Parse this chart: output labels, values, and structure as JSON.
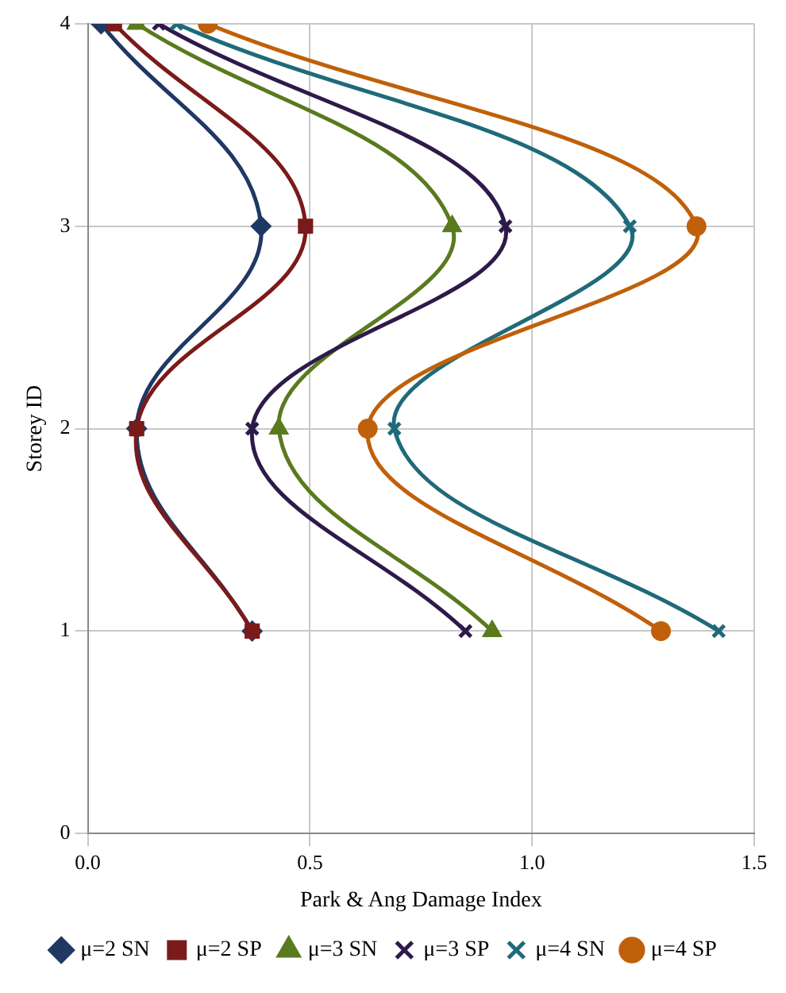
{
  "chart_data": {
    "type": "line",
    "xlabel": "Park & Ang Damage Index",
    "ylabel": "Storey ID",
    "xlim": [
      0,
      1.5
    ],
    "xticks": [
      {
        "value": 0,
        "label": "0.0"
      },
      {
        "value": 0.5,
        "label": "0.5"
      },
      {
        "value": 1,
        "label": "1.0"
      },
      {
        "value": 1.5,
        "label": "1.5"
      }
    ],
    "ylim": [
      0,
      4
    ],
    "yticks": [
      0,
      1,
      2,
      3,
      4
    ],
    "grid": true,
    "legend": "bottom",
    "line_style": "solid",
    "series": [
      {
        "name": "μ=2 SN",
        "color": "#1f3864",
        "marker": "diamond",
        "x": [
          0.03,
          0.39,
          0.11,
          0.37
        ],
        "values": [
          4,
          3,
          2,
          1
        ]
      },
      {
        "name": "μ=2 SP",
        "color": "#7b1a1a",
        "marker": "square",
        "x": [
          0.06,
          0.49,
          0.11,
          0.37
        ],
        "values": [
          4,
          3,
          2,
          1
        ]
      },
      {
        "name": "μ=3 SN",
        "color": "#5a7a1e",
        "marker": "triangle",
        "x": [
          0.11,
          0.82,
          0.43,
          0.91
        ],
        "values": [
          4,
          3,
          2,
          1
        ]
      },
      {
        "name": "μ=3 SP",
        "color": "#2e1a4a",
        "marker": "cross",
        "x": [
          0.16,
          0.94,
          0.37,
          0.85
        ],
        "values": [
          4,
          3,
          2,
          1
        ]
      },
      {
        "name": "μ=4 SN",
        "color": "#1f6a7a",
        "marker": "cross",
        "x": [
          0.2,
          1.22,
          0.69,
          1.42
        ],
        "values": [
          4,
          3,
          2,
          1
        ]
      },
      {
        "name": "μ=4 SP",
        "color": "#c0600a",
        "marker": "circle",
        "x": [
          0.27,
          1.37,
          0.63,
          1.29
        ],
        "values": [
          4,
          3,
          2,
          1
        ]
      }
    ]
  }
}
